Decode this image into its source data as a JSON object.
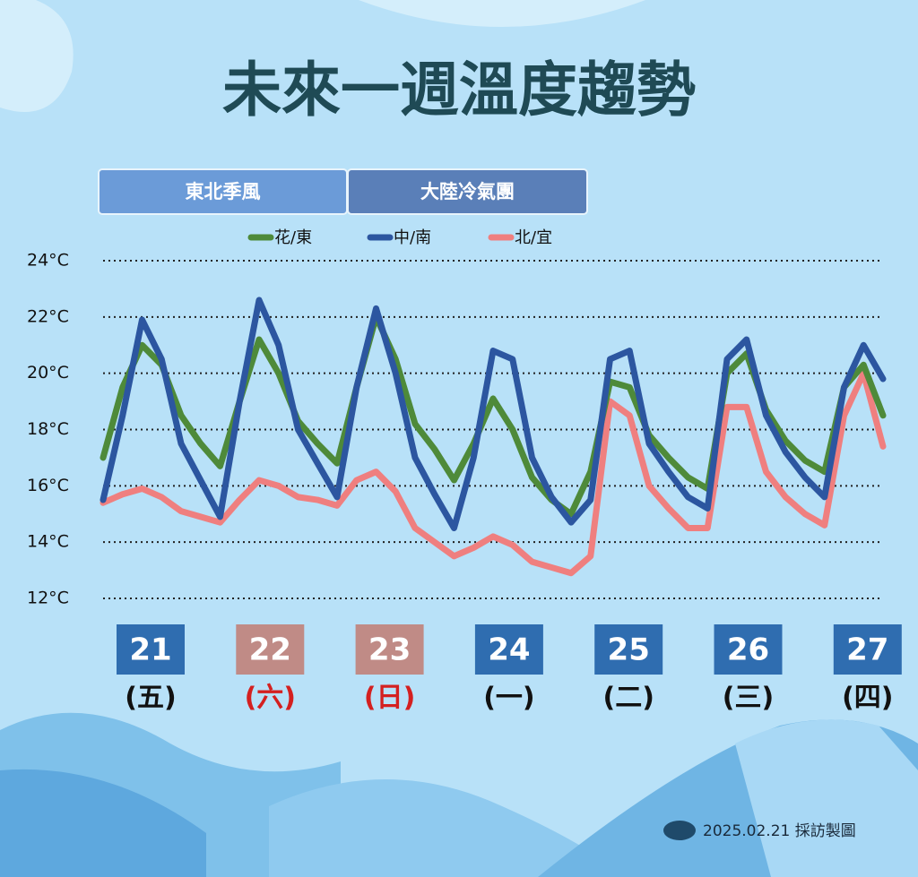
{
  "chart_data": {
    "type": "line",
    "title": "未來一週溫度趨勢",
    "periods": [
      {
        "label": "東北季風",
        "color": "#6b9bd8"
      },
      {
        "label": "大陸冷氣團",
        "color": "#5a7fb8"
      }
    ],
    "categories": [
      null,
      null,
      null,
      null,
      null,
      null,
      null,
      null,
      null,
      null,
      null,
      null,
      null,
      null,
      null,
      null,
      null,
      null,
      null,
      null,
      null,
      null,
      null,
      null,
      null,
      null,
      null,
      null,
      null,
      null,
      null,
      null,
      null,
      null,
      null,
      null,
      null,
      null,
      null,
      null,
      null
    ],
    "series": [
      {
        "name": "花/東",
        "color": "#4e8a3a",
        "values": [
          17,
          19.5,
          21,
          20.3,
          18.5,
          17.5,
          16.7,
          19,
          21.2,
          20,
          18.3,
          17.5,
          16.8,
          19.5,
          22,
          20.5,
          18.2,
          17.3,
          16.2,
          17.5,
          19.1,
          18,
          16.3,
          15.5,
          15,
          16.5,
          19.7,
          19.5,
          17.8,
          17,
          16.3,
          15.9,
          20,
          20.7,
          18.7,
          17.6,
          16.9,
          16.5,
          19.5,
          20.3,
          18.5
        ]
      },
      {
        "name": "中/南",
        "color": "#2c56a0",
        "values": [
          15.5,
          18.5,
          21.9,
          20.5,
          17.5,
          16.2,
          14.9,
          19,
          22.6,
          21,
          18,
          16.8,
          15.6,
          19.5,
          22.3,
          20,
          17,
          15.7,
          14.5,
          17,
          20.8,
          20.5,
          17,
          15.6,
          14.7,
          15.5,
          20.5,
          20.8,
          17.5,
          16.5,
          15.6,
          15.2,
          20.5,
          21.2,
          18.5,
          17.2,
          16.3,
          15.6,
          19.5,
          21,
          19.8
        ]
      },
      {
        "name": "北/宜",
        "color": "#ef7f7f",
        "values": [
          15.4,
          15.7,
          15.9,
          15.6,
          15.1,
          14.9,
          14.7,
          15.5,
          16.2,
          16,
          15.6,
          15.5,
          15.3,
          16.2,
          16.5,
          15.8,
          14.5,
          14,
          13.5,
          13.8,
          14.2,
          13.9,
          13.3,
          13.1,
          12.9,
          13.5,
          19,
          18.5,
          16,
          15.2,
          14.5,
          14.5,
          18.8,
          18.8,
          16.5,
          15.6,
          15,
          14.6,
          18.5,
          20,
          17.4
        ]
      }
    ],
    "ylim": [
      12,
      24
    ],
    "yticks": [
      {
        "value": 12,
        "label": "12°C"
      },
      {
        "value": 14,
        "label": "14°C"
      },
      {
        "value": 16,
        "label": "16°C"
      },
      {
        "value": 18,
        "label": "18°C"
      },
      {
        "value": 20,
        "label": "20°C"
      },
      {
        "value": 22,
        "label": "22°C"
      },
      {
        "value": 24,
        "label": "24°C"
      }
    ],
    "grid": true,
    "days": [
      {
        "date": "21",
        "weekday": "(五)",
        "box_color": "#2f6db0",
        "text_color": "#111111"
      },
      {
        "date": "22",
        "weekday": "(六)",
        "box_color": "#c08b86",
        "text_color": "#d42020"
      },
      {
        "date": "23",
        "weekday": "(日)",
        "box_color": "#c08b86",
        "text_color": "#d42020"
      },
      {
        "date": "24",
        "weekday": "(一)",
        "box_color": "#2f6db0",
        "text_color": "#111111"
      },
      {
        "date": "25",
        "weekday": "(二)",
        "box_color": "#2f6db0",
        "text_color": "#111111"
      },
      {
        "date": "26",
        "weekday": "(三)",
        "box_color": "#2f6db0",
        "text_color": "#111111"
      },
      {
        "date": "27",
        "weekday": "(四)",
        "box_color": "#2f6db0",
        "text_color": "#111111"
      }
    ],
    "source": "2025.02.21 採訪製圖"
  }
}
